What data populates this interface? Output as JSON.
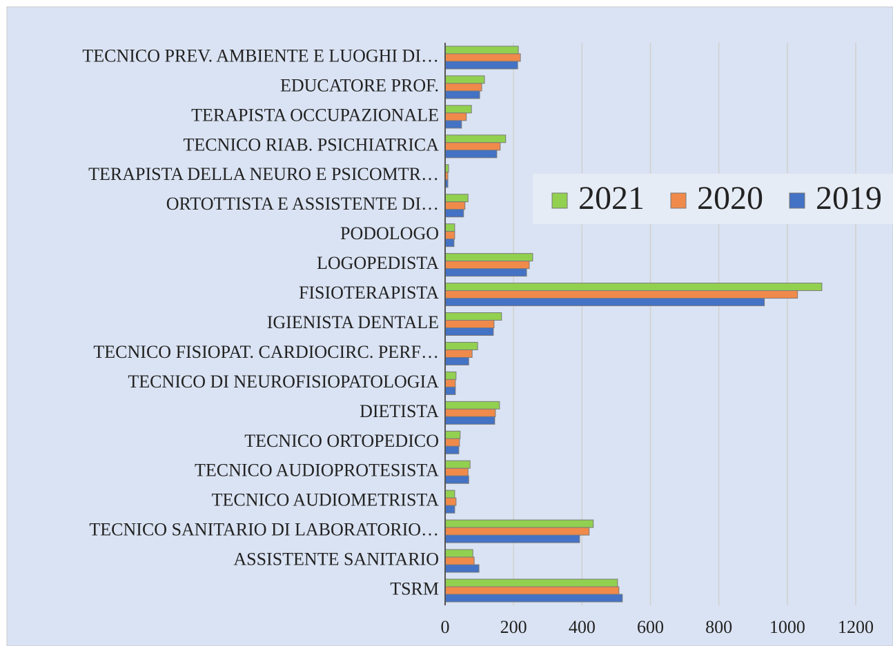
{
  "chart_data": {
    "type": "bar",
    "orientation": "horizontal",
    "categories": [
      "TECNICO PREV. AMBIENTE E LUOGHI DI…",
      "EDUCATORE PROF.",
      "TERAPISTA OCCUPAZIONALE",
      "TECNICO RIAB. PSICHIATRICA",
      "TERAPISTA DELLA NEURO E PSICOMTR…",
      "ORTOTTISTA E ASSISTENTE DI…",
      "PODOLOGO",
      "LOGOPEDISTA",
      "FISIOTERAPISTA",
      "IGIENISTA DENTALE",
      "TECNICO FISIOPAT. CARDIOCIRC. PERF…",
      "TECNICO DI NEUROFISIOPATOLOGIA",
      "DIETISTA",
      "TECNICO ORTOPEDICO",
      "TECNICO AUDIOPROTESISTA",
      "TECNICO AUDIOMETRISTA",
      "TECNICO SANITARIO DI LABORATORIO…",
      "ASSISTENTE SANITARIO",
      "TSRM"
    ],
    "series": [
      {
        "name": "2021",
        "color": "#92d050",
        "values": [
          214,
          115,
          77,
          177,
          10,
          67,
          28,
          256,
          1101,
          165,
          95,
          32,
          159,
          44,
          73,
          28,
          433,
          81,
          504
        ]
      },
      {
        "name": "2020",
        "color": "#f08a4b",
        "values": [
          220,
          107,
          62,
          161,
          8,
          58,
          28,
          246,
          1030,
          143,
          79,
          30,
          147,
          42,
          67,
          32,
          421,
          85,
          508
        ]
      },
      {
        "name": "2019",
        "color": "#4472c4",
        "values": [
          212,
          101,
          48,
          151,
          8,
          54,
          26,
          238,
          933,
          141,
          69,
          30,
          145,
          40,
          69,
          28,
          393,
          99,
          518
        ]
      }
    ],
    "xlim": [
      0,
      1200
    ],
    "xticks": [
      0,
      200,
      400,
      600,
      800,
      1000,
      1200
    ],
    "grid": true,
    "legend": "right"
  }
}
